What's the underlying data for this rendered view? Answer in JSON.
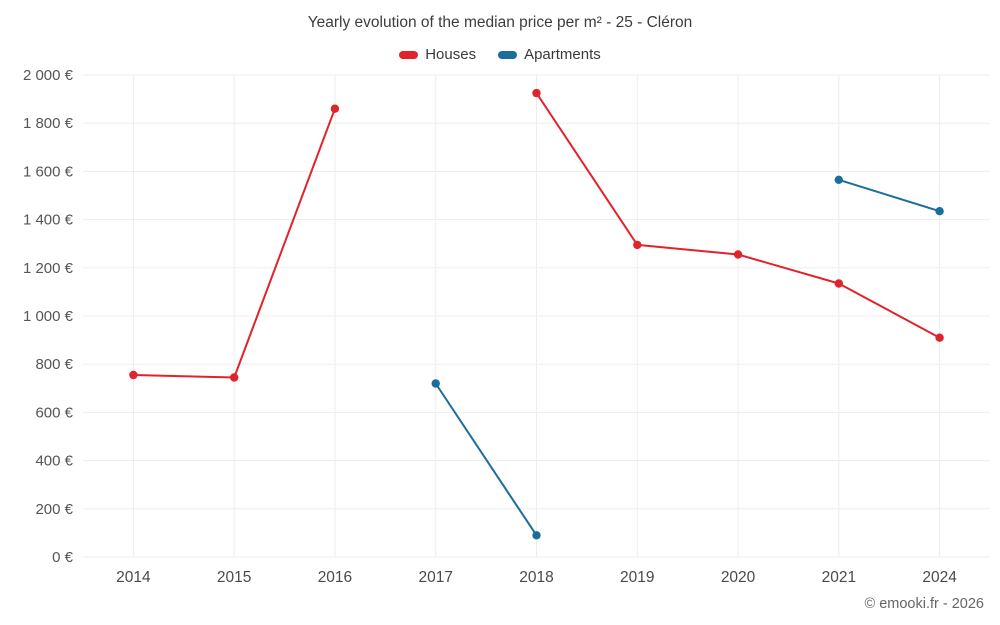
{
  "header": {
    "title": "Yearly evolution of the median price per m² - 25 - Cléron"
  },
  "footer": {
    "credit": "© emooki.fr - 2026"
  },
  "colors": {
    "houses": "#e1232b",
    "apartments": "#1b6d9b",
    "grid": "#ededed",
    "tick_text": "#555555",
    "x_text": "#4a4a4a",
    "title_text": "#3d3d3d"
  },
  "chart_data": {
    "type": "line",
    "title": "Yearly evolution of the median price per m² - 25 - Cléron",
    "categories": [
      "2014",
      "2015",
      "2016",
      "2017",
      "2018",
      "2019",
      "2020",
      "2021",
      "2024"
    ],
    "series": [
      {
        "name": "Houses",
        "color": "#e1232b",
        "values": [
          755,
          745,
          1860,
          null,
          1925,
          1295,
          1255,
          1135,
          910
        ]
      },
      {
        "name": "Apartments",
        "color": "#1b6d9b",
        "values": [
          null,
          null,
          null,
          720,
          90,
          null,
          null,
          1565,
          1435
        ]
      }
    ],
    "ylim": [
      0,
      2000
    ],
    "ytick_step": 200,
    "ytick_suffix": " €",
    "grid": true,
    "legend_position": "top",
    "marker": "circle"
  }
}
